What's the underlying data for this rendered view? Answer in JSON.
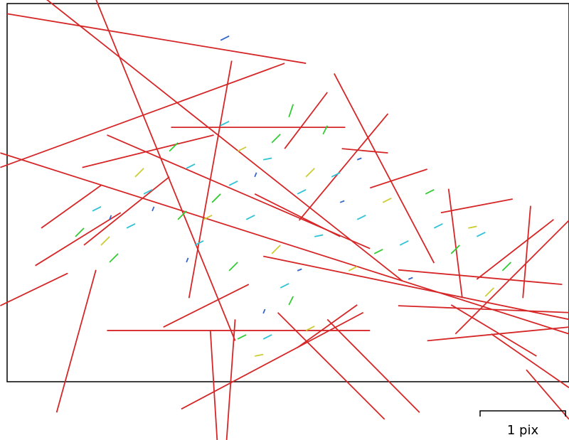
{
  "chart_data": {
    "type": "quiver",
    "xlim": [
      0,
      6.58
    ],
    "ylim": [
      0,
      4.43
    ],
    "scale": {
      "length": 1,
      "label": "1 pix"
    },
    "series": [
      {
        "color": "#d62728",
        "segments": [
          [
            0,
            4.31,
            3.5,
            3.73
          ],
          [
            0.46,
            4.48,
            4.63,
            1.18
          ],
          [
            1.04,
            4.48,
            2.67,
            0.48
          ],
          [
            -0.08,
            2.68,
            6.58,
            0.56
          ],
          [
            -0.08,
            2.51,
            3.25,
            3.73
          ],
          [
            2.63,
            3.76,
            2.13,
            0.98
          ],
          [
            3.83,
            3.61,
            5,
            1.39
          ],
          [
            0.58,
            -0.36,
            1.04,
            1.31
          ],
          [
            1.17,
            0.6,
            4.25,
            0.6
          ],
          [
            2.38,
            0.6,
            2.46,
            -0.69
          ],
          [
            2.67,
            0.73,
            2.57,
            -0.69
          ],
          [
            2.04,
            -0.32,
            4.17,
            0.81
          ],
          [
            3.75,
            0.73,
            4.83,
            -0.36
          ],
          [
            5.17,
            2.26,
            5.33,
            0.98
          ],
          [
            6.13,
            2.06,
            6.04,
            0.98
          ],
          [
            6.58,
            1.89,
            5.25,
            0.56
          ],
          [
            5.67,
            0.56,
            6.58,
            -0.07
          ],
          [
            4.58,
            0.89,
            6.58,
            0.81
          ],
          [
            0.33,
            1.36,
            1.33,
            1.98
          ],
          [
            -0.08,
            0.89,
            0.71,
            1.27
          ],
          [
            0.88,
            2.51,
            2.42,
            2.89
          ],
          [
            1.17,
            2.89,
            4.25,
            1.56
          ],
          [
            4.46,
            3.14,
            3.42,
            1.89
          ],
          [
            3.92,
            2.73,
            4.46,
            2.68
          ],
          [
            4.92,
            2.49,
            4.25,
            2.27
          ],
          [
            1.83,
            0.64,
            2.83,
            1.14
          ],
          [
            5.08,
            1.98,
            5.92,
            2.14
          ],
          [
            4.58,
            1.31,
            6.5,
            1.14
          ],
          [
            6.08,
            0.14,
            6.58,
            -0.44
          ],
          [
            3,
            1.47,
            6.58,
            0.73
          ],
          [
            4.92,
            0.48,
            6.58,
            0.64
          ],
          [
            3.17,
            0.81,
            4.42,
            -0.44
          ],
          [
            3.75,
            3.39,
            3.25,
            2.73
          ],
          [
            1.92,
            2.98,
            3.96,
            2.98
          ],
          [
            0.9,
            1.6,
            1.9,
            2.4
          ],
          [
            2.9,
            2.2,
            3.9,
            1.7
          ],
          [
            5.5,
            1.2,
            6.4,
            1.9
          ],
          [
            0.4,
            1.8,
            1.1,
            2.3
          ],
          [
            3.4,
            0.4,
            4.1,
            0.9
          ],
          [
            5.2,
            0.9,
            6.2,
            0.3
          ]
        ]
      },
      {
        "color": "#2ec4d6",
        "segments": [
          [
            1.6,
            2.2,
            1.7,
            2.25
          ],
          [
            2.1,
            2.5,
            2.2,
            2.55
          ],
          [
            2.6,
            2.3,
            2.7,
            2.35
          ],
          [
            3.0,
            2.6,
            3.1,
            2.62
          ],
          [
            3.4,
            2.2,
            3.5,
            2.25
          ],
          [
            2.8,
            1.9,
            2.9,
            1.95
          ],
          [
            3.6,
            1.7,
            3.7,
            1.72
          ],
          [
            4.1,
            1.9,
            4.2,
            1.95
          ],
          [
            4.6,
            1.6,
            4.7,
            1.65
          ],
          [
            5.0,
            1.8,
            5.1,
            1.85
          ],
          [
            5.5,
            1.7,
            5.6,
            1.75
          ],
          [
            2.2,
            1.6,
            2.3,
            1.65
          ],
          [
            1.4,
            1.8,
            1.5,
            1.85
          ],
          [
            3.2,
            1.1,
            3.3,
            1.15
          ],
          [
            3.0,
            0.5,
            3.1,
            0.55
          ],
          [
            2.5,
            3.0,
            2.6,
            3.05
          ],
          [
            3.8,
            2.4,
            3.9,
            2.45
          ],
          [
            1.0,
            2.0,
            1.1,
            2.05
          ]
        ]
      },
      {
        "color": "#33cc33",
        "segments": [
          [
            1.9,
            2.7,
            2.0,
            2.8
          ],
          [
            2.4,
            2.1,
            2.5,
            2.2
          ],
          [
            3.1,
            2.8,
            3.2,
            2.9
          ],
          [
            3.7,
            2.9,
            3.75,
            3.0
          ],
          [
            0.8,
            1.7,
            0.9,
            1.8
          ],
          [
            1.2,
            1.4,
            1.3,
            1.5
          ],
          [
            2.6,
            1.3,
            2.7,
            1.4
          ],
          [
            3.3,
            0.9,
            3.35,
            1.0
          ],
          [
            2.7,
            0.5,
            2.8,
            0.55
          ],
          [
            4.3,
            1.5,
            4.4,
            1.55
          ],
          [
            5.2,
            1.5,
            5.3,
            1.6
          ],
          [
            5.8,
            1.3,
            5.9,
            1.4
          ],
          [
            4.9,
            2.2,
            5.0,
            2.25
          ],
          [
            2.0,
            1.9,
            2.1,
            2.0
          ],
          [
            3.3,
            3.1,
            3.35,
            3.25
          ]
        ]
      },
      {
        "color": "#cccc33",
        "segments": [
          [
            1.5,
            2.4,
            1.6,
            2.5
          ],
          [
            2.7,
            2.7,
            2.8,
            2.75
          ],
          [
            3.5,
            2.4,
            3.6,
            2.5
          ],
          [
            4.4,
            2.1,
            4.5,
            2.15
          ],
          [
            1.1,
            1.6,
            1.2,
            1.7
          ],
          [
            2.3,
            1.9,
            2.4,
            1.95
          ],
          [
            3.1,
            1.5,
            3.2,
            1.6
          ],
          [
            3.5,
            0.6,
            3.6,
            0.65
          ],
          [
            5.4,
            1.8,
            5.5,
            1.82
          ],
          [
            5.6,
            1.0,
            5.7,
            1.1
          ],
          [
            2.9,
            0.3,
            3.0,
            0.32
          ],
          [
            4.0,
            1.3,
            4.1,
            1.35
          ]
        ]
      },
      {
        "color": "#3366cc",
        "segments": [
          [
            2.5,
            4.0,
            2.6,
            4.05
          ],
          [
            1.7,
            2.0,
            1.72,
            2.05
          ],
          [
            2.9,
            2.4,
            2.92,
            2.45
          ],
          [
            3.9,
            2.1,
            3.95,
            2.12
          ],
          [
            1.2,
            1.9,
            1.22,
            1.95
          ],
          [
            3.4,
            1.3,
            3.45,
            1.32
          ],
          [
            4.7,
            1.2,
            4.75,
            1.22
          ],
          [
            3.0,
            0.8,
            3.02,
            0.85
          ],
          [
            2.1,
            1.4,
            2.12,
            1.45
          ],
          [
            4.1,
            2.6,
            4.15,
            2.62
          ]
        ]
      }
    ]
  }
}
